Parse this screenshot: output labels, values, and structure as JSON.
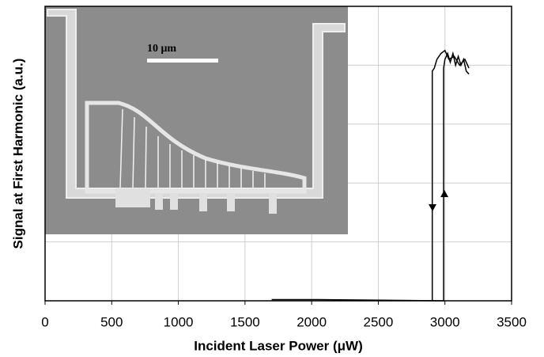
{
  "chart_data": {
    "type": "line",
    "xlabel": "Incident Laser Power (μW)",
    "ylabel": "Signal at First Harmonic (a.u.)",
    "annotation": "10 μm",
    "xlim": [
      0,
      3500
    ],
    "xticks": [
      0,
      500,
      1000,
      1500,
      2000,
      2500,
      3000,
      3500
    ],
    "ylim": [
      0,
      5
    ],
    "yticks": [
      0,
      1,
      2,
      3,
      4,
      5
    ],
    "grid": true,
    "series": [
      {
        "color": "#000000",
        "x": [
          1700,
          2050,
          2990,
          2990,
          3000,
          3020,
          3040,
          3060,
          3080,
          3100,
          3120,
          3140,
          3160,
          3180
        ],
        "values": [
          0.02,
          0.02,
          0,
          3.95,
          4.1,
          4.2,
          4.05,
          4.2,
          4.0,
          4.15,
          4.0,
          4.1,
          3.9,
          3.85
        ]
      },
      {
        "color": "#000000",
        "x": [
          3180,
          3150,
          3110,
          3070,
          3030,
          3000,
          2970,
          2940,
          2920,
          2905,
          2905
        ],
        "values": [
          3.95,
          4.1,
          4.0,
          4.15,
          4.1,
          4.25,
          4.2,
          4.1,
          3.95,
          3.9,
          0
        ]
      }
    ]
  }
}
